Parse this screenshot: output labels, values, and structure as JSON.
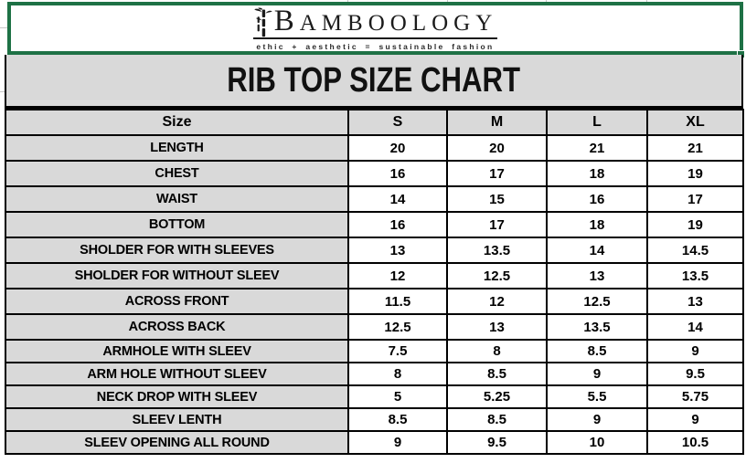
{
  "brand": {
    "name": "BAMBOOLOGY",
    "tagline": "ethic + aesthetic = sustainable fashion",
    "icon": "bamboo-icon"
  },
  "title": "RIB TOP SIZE CHART",
  "colors": {
    "selection_green": "#1E7145",
    "header_gray": "#D9D9D9",
    "border_black": "#000000"
  },
  "table": {
    "columns": [
      "Size",
      "S",
      "M",
      "L",
      "XL"
    ],
    "rows": [
      {
        "label": "LENGTH",
        "values": [
          "20",
          "20",
          "21",
          "21"
        ]
      },
      {
        "label": "CHEST",
        "values": [
          "16",
          "17",
          "18",
          "19"
        ]
      },
      {
        "label": "WAIST",
        "values": [
          "14",
          "15",
          "16",
          "17"
        ]
      },
      {
        "label": "BOTTOM",
        "values": [
          "16",
          "17",
          "18",
          "19"
        ]
      },
      {
        "label": "SHOLDER FOR WITH SLEEVES",
        "values": [
          "13",
          "13.5",
          "14",
          "14.5"
        ]
      },
      {
        "label": "SHOLDER FOR WITHOUT SLEEV",
        "values": [
          "12",
          "12.5",
          "13",
          "13.5"
        ]
      },
      {
        "label": "ACROSS FRONT",
        "values": [
          "11.5",
          "12",
          "12.5",
          "13"
        ]
      },
      {
        "label": "ACROSS BACK",
        "values": [
          "12.5",
          "13",
          "13.5",
          "14"
        ]
      },
      {
        "label": "ARMHOLE WITH SLEEV",
        "values": [
          "7.5",
          "8",
          "8.5",
          "9"
        ]
      },
      {
        "label": "ARM HOLE WITHOUT SLEEV",
        "values": [
          "8",
          "8.5",
          "9",
          "9.5"
        ]
      },
      {
        "label": "NECK DROP WITH SLEEV",
        "values": [
          "5",
          "5.25",
          "5.5",
          "5.75"
        ]
      },
      {
        "label": "SLEEV LENTH",
        "values": [
          "8.5",
          "8.5",
          "9",
          "9"
        ]
      },
      {
        "label": "SLEEV OPENING ALL ROUND",
        "values": [
          "9",
          "9.5",
          "10",
          "10.5"
        ]
      }
    ]
  }
}
